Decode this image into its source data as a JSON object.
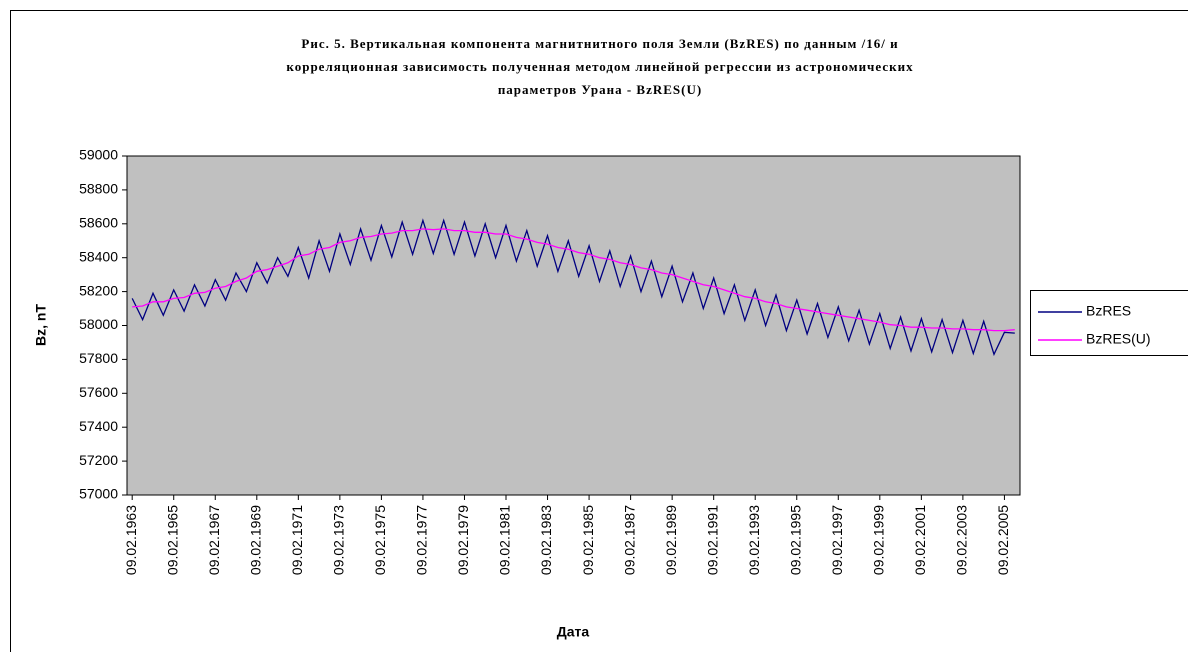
{
  "chart_data": {
    "type": "line",
    "title": [
      "Рис. 5. Вертикальная компонента магнитнитного поля Земли (BzRES) по данным /16/ и",
      "корреляционная зависимость полученная методом линейной регрессии из астрономических",
      "параметров Урана - BzRES(U)"
    ],
    "xlabel": "Дата",
    "ylabel": "Bz, nT",
    "categories": [
      "09.02.1963",
      null,
      null,
      null,
      "09.02.1965",
      null,
      null,
      null,
      "09.02.1967",
      null,
      null,
      null,
      "09.02.1969",
      null,
      null,
      null,
      "09.02.1971",
      null,
      null,
      null,
      "09.02.1973",
      null,
      null,
      null,
      "09.02.1975",
      null,
      null,
      null,
      "09.02.1977",
      null,
      null,
      null,
      "09.02.1979",
      null,
      null,
      null,
      "09.02.1981",
      null,
      null,
      null,
      "09.02.1983",
      null,
      null,
      null,
      "09.02.1985",
      null,
      null,
      null,
      "09.02.1987",
      null,
      null,
      null,
      "09.02.1989",
      null,
      null,
      null,
      "09.02.1991",
      null,
      null,
      null,
      "09.02.1993",
      null,
      null,
      null,
      "09.02.1995",
      null,
      null,
      null,
      "09.02.1997",
      null,
      null,
      null,
      "09.02.1999",
      null,
      null,
      null,
      "09.02.2001",
      null,
      null,
      null,
      "09.02.2003",
      null,
      null,
      null,
      "09.02.2005",
      null
    ],
    "series": [
      {
        "name": "BzRES",
        "color": "#000080",
        "values": [
          58160,
          58035,
          58190,
          58060,
          58210,
          58085,
          58240,
          58115,
          58270,
          58150,
          58310,
          58200,
          58370,
          58250,
          58400,
          58290,
          58460,
          58280,
          58500,
          58320,
          58540,
          58360,
          58570,
          58385,
          58590,
          58405,
          58610,
          58420,
          58620,
          58425,
          58620,
          58420,
          58610,
          58410,
          58600,
          58400,
          58590,
          58380,
          58560,
          58350,
          58530,
          58320,
          58500,
          58290,
          58470,
          58260,
          58440,
          58230,
          58410,
          58200,
          58380,
          58170,
          58350,
          58140,
          58310,
          58100,
          58280,
          58070,
          58240,
          58030,
          58210,
          58000,
          58180,
          57970,
          58150,
          57950,
          58130,
          57930,
          58110,
          57910,
          58090,
          57890,
          58070,
          57865,
          58050,
          57850,
          58040,
          57845,
          58035,
          57840,
          58030,
          57835,
          58025,
          57830,
          57960,
          57955
        ]
      },
      {
        "name": "BzRES(U)",
        "color": "#ff00ff",
        "values": [
          58110,
          58115,
          58140,
          58140,
          58160,
          58165,
          58190,
          58195,
          58220,
          58230,
          58260,
          58280,
          58320,
          58330,
          58350,
          58370,
          58410,
          58420,
          58450,
          58460,
          58490,
          58500,
          58520,
          58525,
          58540,
          58545,
          58560,
          58560,
          58570,
          58565,
          58570,
          58560,
          58560,
          58550,
          58550,
          58540,
          58540,
          58520,
          58510,
          58490,
          58480,
          58460,
          58450,
          58430,
          58420,
          58400,
          58390,
          58370,
          58360,
          58340,
          58330,
          58310,
          58300,
          58280,
          58260,
          58240,
          58230,
          58210,
          58190,
          58170,
          58160,
          58140,
          58130,
          58110,
          58100,
          58090,
          58080,
          58070,
          58060,
          58050,
          58040,
          58030,
          58020,
          58005,
          58000,
          57990,
          57990,
          57985,
          57985,
          57980,
          57980,
          57975,
          57975,
          57970,
          57970,
          57975
        ]
      }
    ],
    "ylim": [
      57000,
      59000
    ],
    "yticks": [
      57000,
      57200,
      57400,
      57600,
      57800,
      58000,
      58200,
      58400,
      58600,
      58800,
      59000
    ],
    "grid": false,
    "plot_background": "#c0c0c0",
    "legend": "right"
  }
}
